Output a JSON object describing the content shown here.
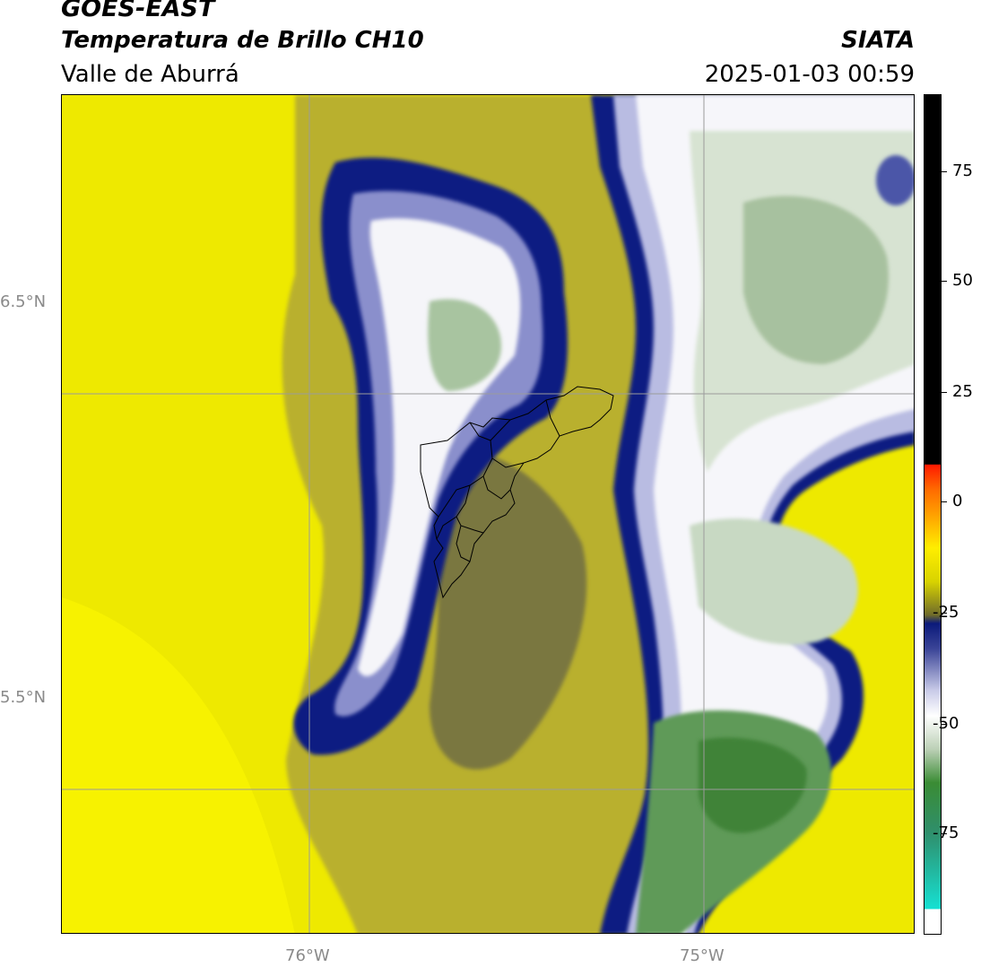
{
  "header": {
    "line1": "GOES-EAST",
    "line2": "Temperatura de Brillo CH10",
    "subtitle": "Valle de Aburrá",
    "org": "SIATA",
    "datetime": "2025-01-03 00:59"
  },
  "axes": {
    "lat_labels": [
      "6.5°N",
      "5.5°N"
    ],
    "lon_labels": [
      "76°W",
      "75°W"
    ]
  },
  "colorbar": {
    "ticks": [
      "75",
      "50",
      "25",
      "0",
      "-25",
      "-50",
      "-75"
    ],
    "colors": {
      "black": "#000000",
      "red": "#ff1a00",
      "orange": "#ff8a00",
      "yellow": "#ffee00",
      "olive": "#6f6b2a",
      "navy": "#0b1a7a",
      "lavender": "#c9cbe8",
      "white": "#ffffff",
      "green": "#2f7f2f",
      "cyan": "#16e0d2"
    }
  },
  "map": {
    "colors": {
      "yellow_bright": "#f7f200",
      "yellow": "#e9e400",
      "yellow_olive": "#cdc51a",
      "olive": "#a39a3c",
      "olive_dark": "#6c6a3f",
      "navy": "#0c1a82",
      "blue_mid": "#4b56a8",
      "lavender": "#b9bce2",
      "white": "#f7f7fb",
      "pale_green": "#d7e3d2",
      "light_green": "#9fbe97",
      "green": "#5f9a58",
      "dark_green": "#3f8338",
      "grid": "#9b9b9b",
      "boundary": "#000000"
    }
  }
}
